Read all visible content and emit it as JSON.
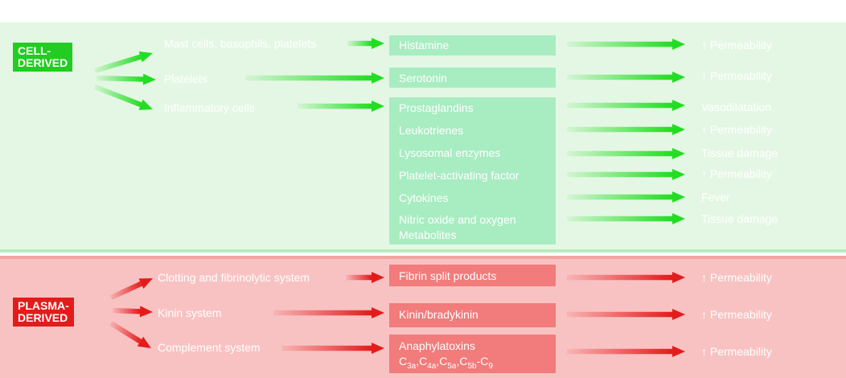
{
  "cell": {
    "label": "CELL-\nDERIVED",
    "sources": [
      "Mast cells, basophils, platelets",
      "Platelets",
      "Inflammatory cells"
    ],
    "mediators": [
      "Histamine",
      "Serotonin",
      "Prostaglandins",
      "Leukotrienes",
      "Lysosomal enzymes",
      "Platelet-activating factor",
      "Cytokines",
      "Nitric oxide and oxygen",
      "Metabolites"
    ],
    "effects": [
      "↑ Permeability",
      "↑ Permeability",
      "Vasodilatation",
      "↑ Permeability",
      "Tissue damage",
      "↑ Permeability",
      "Fever",
      "Tissue damage"
    ]
  },
  "plasma": {
    "label": "PLASMA-\nDERIVED",
    "sources": [
      "Clotting and fibrinolytic system",
      "Kinin system",
      "Complement system"
    ],
    "mediators": [
      "Fibrin split products",
      "Kinin/bradykinin",
      "Anaphylatoxins"
    ],
    "anaphylatoxin_parts": [
      "C",
      "3a",
      ",C",
      "4a",
      ",C",
      "5a",
      ",C",
      "5b",
      "-C",
      "9"
    ],
    "effects": [
      "↑ Permeability",
      "↑ Permeability",
      "↑ Permeability"
    ]
  },
  "colors": {
    "cell_bg": "#e4f7e4",
    "plasma_bg": "#f9c2c2",
    "green_arrow": "#22dd22",
    "red_arrow": "#e41b1b"
  }
}
